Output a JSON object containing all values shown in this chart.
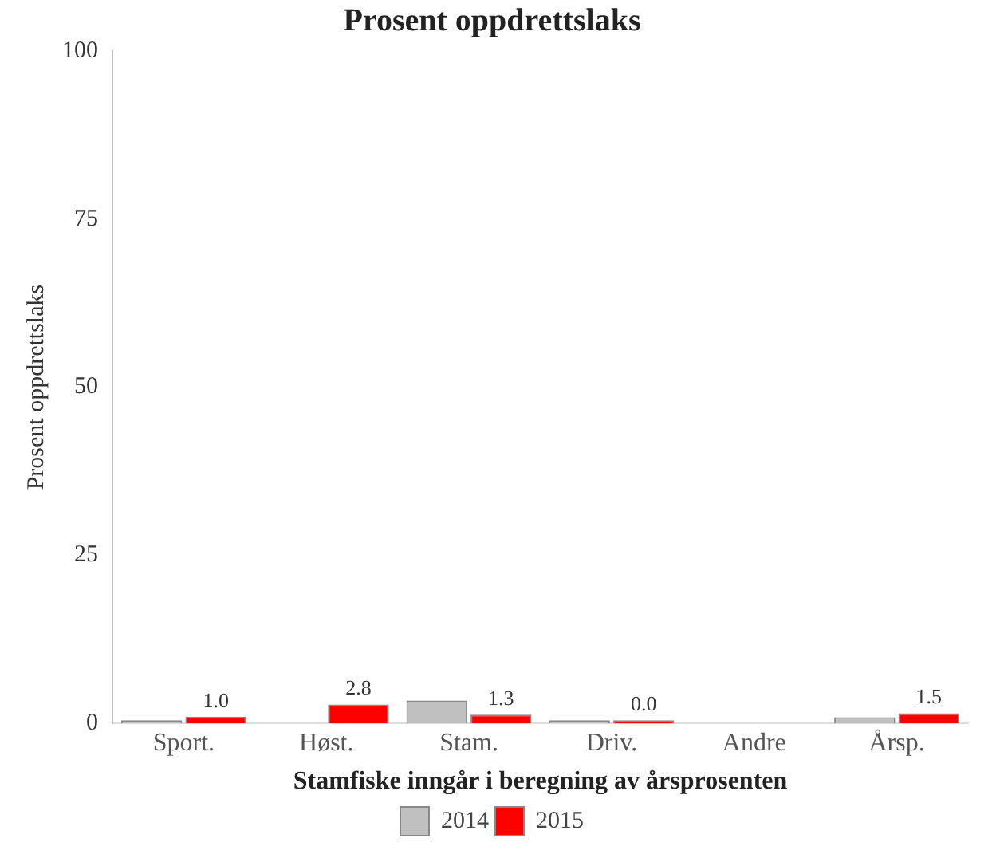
{
  "chart_data": {
    "type": "bar",
    "title": "Prosent oppdrettslaks",
    "xlabel": "Stamfiske inngår i beregning av årsprosenten",
    "ylabel": "Prosent oppdrettslaks",
    "categories": [
      "Sport.",
      "Høst.",
      "Stam.",
      "Driv.",
      "Andre",
      "Årsp."
    ],
    "series": [
      {
        "name": "2014",
        "color": "#c0c0c0",
        "values": [
          0.1,
          null,
          3.4,
          0.1,
          null,
          0.9
        ]
      },
      {
        "name": "2015",
        "color": "#ff0000",
        "values": [
          1.0,
          2.8,
          1.3,
          0.0,
          null,
          1.5
        ],
        "value_labels": [
          "1.0",
          "2.8",
          "1.3",
          "0.0",
          null,
          "1.5"
        ]
      }
    ],
    "ylim": [
      0,
      100
    ],
    "yticks": [
      0,
      25,
      50,
      75,
      100
    ],
    "grid": false,
    "legend": "bottom"
  }
}
